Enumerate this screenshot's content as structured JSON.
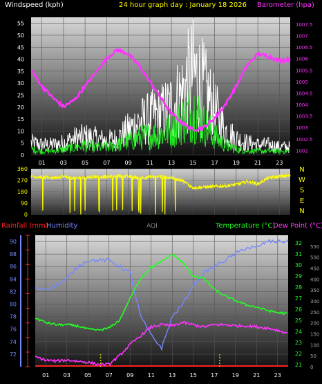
{
  "title": "24 hour graph day : January 18 2026",
  "colors": {
    "wind_avg": "#ffffff",
    "wind_gust": "#22ee22",
    "barometer": "#ff33ff",
    "direction": "#ffff00",
    "rain": "#ff2222",
    "humidity": "#7788ff",
    "temperature": "#22ff22",
    "dewpoint": "#ff33ff",
    "aqi": "#888888",
    "rain_marker": "#cccc00"
  },
  "chart_data": [
    {
      "type": "line",
      "ylabel_left": "Windspeed (kph)",
      "ylabel_right": "Barometer (hpa)",
      "x_ticks": [
        "01",
        "03",
        "05",
        "07",
        "09",
        "11",
        "13",
        "15",
        "17",
        "19",
        "21",
        "23"
      ],
      "ylim_left": [
        0,
        57.5
      ],
      "y_ticks_left": [
        0,
        5,
        10,
        15,
        20,
        25,
        30,
        35,
        40,
        45,
        50,
        55
      ],
      "ylim_right": [
        1001.8,
        1007.8
      ],
      "y_ticks_right": [
        1002,
        1002.5,
        1003,
        1003.5,
        1004,
        1004.5,
        1005,
        1005.5,
        1006,
        1006.5,
        1007,
        1007.5
      ],
      "x_hours": [
        0,
        1,
        2,
        3,
        4,
        5,
        6,
        7,
        8,
        9,
        10,
        11,
        12,
        13,
        14,
        15,
        16,
        17,
        18,
        19,
        20,
        21,
        22,
        23,
        24
      ],
      "barometer": [
        1005.5,
        1004.8,
        1004.3,
        1003.9,
        1004.2,
        1004.8,
        1005.4,
        1006,
        1006.4,
        1006.2,
        1005.7,
        1005,
        1004.3,
        1003.6,
        1003.2,
        1002.9,
        1003,
        1003.4,
        1004,
        1004.8,
        1005.7,
        1006.2,
        1006.1,
        1005.9,
        1006
      ],
      "wind_avg": [
        6,
        5,
        5,
        6,
        8,
        9,
        8,
        7,
        8,
        12,
        16,
        18,
        20,
        24,
        30,
        40,
        32,
        22,
        12,
        8,
        6,
        5,
        5,
        4,
        4
      ],
      "wind_gust": [
        3,
        2,
        2,
        3,
        4,
        5,
        4,
        4,
        5,
        7,
        9,
        10,
        11,
        13,
        18,
        24,
        16,
        10,
        5,
        3,
        2,
        2,
        2,
        2,
        2
      ]
    },
    {
      "type": "line",
      "ylabel_right_letters": [
        "N",
        "W",
        "S",
        "E",
        "N"
      ],
      "ylim": [
        0,
        360
      ],
      "y_ticks": [
        0,
        90,
        180,
        270,
        360
      ],
      "x_hours": [
        0,
        1,
        2,
        3,
        4,
        5,
        6,
        7,
        8,
        9,
        10,
        11,
        12,
        13,
        14,
        15,
        16,
        17,
        18,
        19,
        20,
        21,
        22,
        23,
        24
      ],
      "direction": [
        300,
        295,
        290,
        300,
        285,
        290,
        300,
        295,
        305,
        300,
        290,
        295,
        300,
        290,
        270,
        210,
        215,
        220,
        225,
        235,
        260,
        240,
        290,
        300,
        305
      ]
    },
    {
      "type": "line",
      "ylabel_left": "Rainfall (mm)",
      "ylabel_left2": "Humidity",
      "ylabel_center": "AQI",
      "ylabel_right": "Temperature (°C)",
      "ylabel_right2": "Dew Point (°C)",
      "x_ticks": [
        "01",
        "03",
        "05",
        "07",
        "09",
        "11",
        "13",
        "15",
        "17",
        "19",
        "21",
        "23"
      ],
      "ylim_humidity": [
        70,
        91
      ],
      "y_ticks_humidity": [
        72,
        74,
        76,
        78,
        80,
        82,
        84,
        86,
        88,
        90
      ],
      "ylim_temp": [
        20.8,
        32.7
      ],
      "y_ticks_temp": [
        21,
        22,
        23,
        24,
        25,
        26,
        27,
        28,
        29,
        30,
        31,
        32
      ],
      "ylim_aqi": [
        0,
        600
      ],
      "y_ticks_aqi": [
        0,
        50,
        100,
        150,
        200,
        250,
        300,
        350,
        400,
        450,
        500,
        550
      ],
      "rain_y_ticks": [
        0,
        1,
        2,
        3,
        4,
        5,
        6,
        7,
        8,
        9
      ],
      "x_hours": [
        0,
        1,
        2,
        3,
        4,
        5,
        6,
        7,
        8,
        9,
        10,
        11,
        12,
        13,
        14,
        15,
        16,
        17,
        18,
        19,
        20,
        21,
        22,
        23,
        24
      ],
      "humidity": [
        82.5,
        82.5,
        83,
        84,
        86,
        87,
        87,
        87,
        86,
        85,
        78,
        75,
        73,
        78,
        80,
        83,
        85,
        86,
        87,
        88,
        89,
        89,
        90,
        90,
        90
      ],
      "temperature": [
        25.2,
        24.8,
        24.6,
        24.6,
        24.5,
        24.2,
        24.1,
        24.3,
        25,
        27,
        28.8,
        29.8,
        30.3,
        31,
        30.2,
        29,
        28.8,
        27.8,
        27.2,
        26.8,
        26.4,
        26.2,
        25.9,
        25.7,
        25.6
      ],
      "dewpoint": [
        21.7,
        21.4,
        21.3,
        21.4,
        21.3,
        21.2,
        21,
        21,
        21.8,
        22.8,
        23.6,
        24.4,
        24.6,
        24.5,
        24.8,
        24.6,
        24.4,
        24.6,
        24.6,
        24.5,
        24.5,
        24.4,
        24.3,
        24.1,
        23.8
      ],
      "rain_markers_hours": [
        6.2,
        17.5
      ]
    }
  ]
}
